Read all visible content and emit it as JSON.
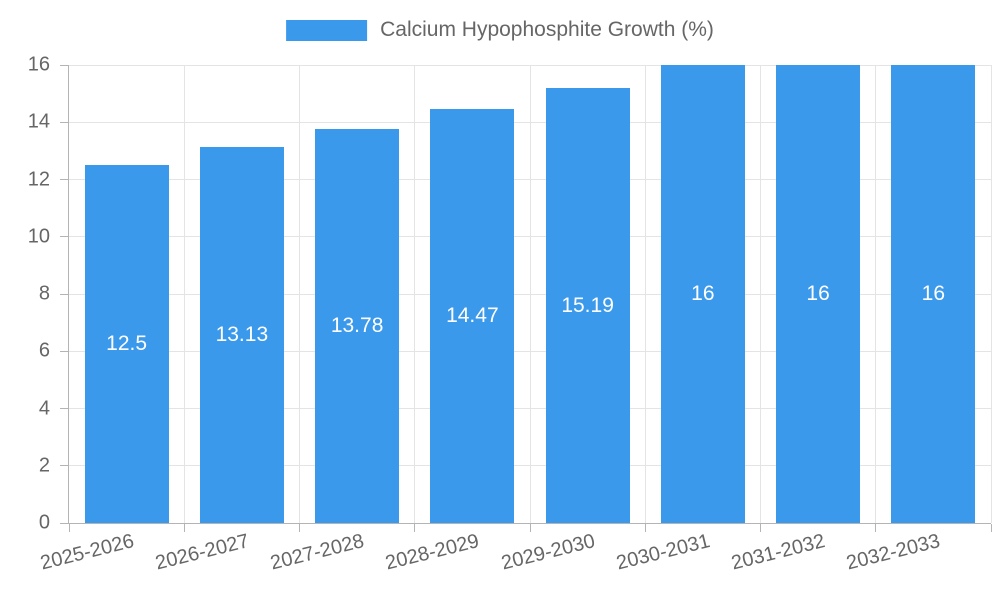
{
  "chart_data": {
    "type": "bar",
    "title": "",
    "legend": {
      "label": "Calcium Hypophosphite Growth (%)",
      "position": "top"
    },
    "categories": [
      "2025-2026",
      "2026-2027",
      "2027-2028",
      "2028-2029",
      "2029-2030",
      "2030-2031",
      "2031-2032",
      "2032-2033"
    ],
    "values": [
      12.5,
      13.13,
      13.78,
      14.47,
      15.19,
      16,
      16,
      16
    ],
    "value_labels": [
      "12.5",
      "13.13",
      "13.78",
      "14.47",
      "15.19",
      "16",
      "16",
      "16"
    ],
    "xlabel": "",
    "ylabel": "",
    "ylim": [
      0,
      16
    ],
    "yticks": [
      0,
      2,
      4,
      6,
      8,
      10,
      12,
      14,
      16
    ],
    "grid": true,
    "bar_width_fraction": 0.73,
    "x_label_rotation_deg": -14,
    "colors": {
      "bar": "#3B99EC",
      "grid": "#E4E4E4",
      "axis": "#B4B4B4",
      "tick_text": "#666666",
      "legend_text": "#666666",
      "value_label": "#FFFFFF",
      "background": "#FFFFFF"
    }
  }
}
